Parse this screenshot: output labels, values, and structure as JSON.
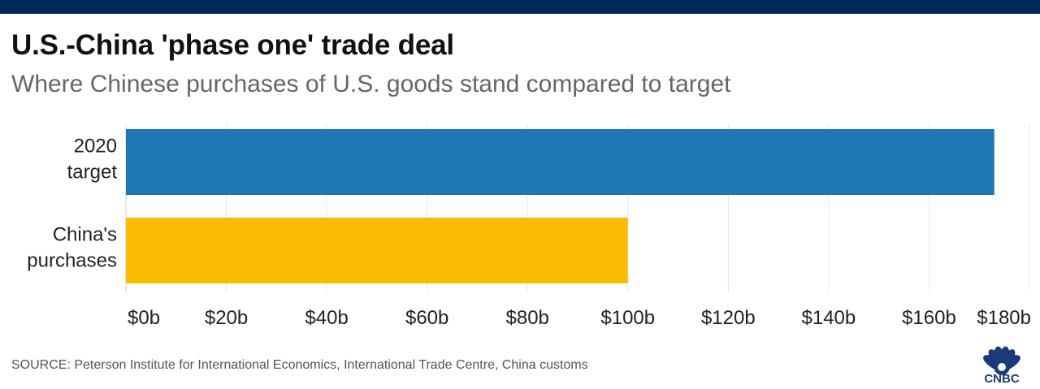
{
  "header": {
    "title": "U.S.-China 'phase one' trade deal",
    "subtitle": "Where Chinese purchases of U.S. goods stand compared to target"
  },
  "chart_data": {
    "type": "bar",
    "orientation": "horizontal",
    "categories": [
      [
        "2020",
        "target"
      ],
      [
        "China's",
        "purchases"
      ]
    ],
    "values": [
      173,
      100
    ],
    "colors": [
      "#1f77b4",
      "#fbbc05"
    ],
    "xlim": [
      0,
      180
    ],
    "x_ticks": [
      0,
      20,
      40,
      60,
      80,
      100,
      120,
      140,
      160,
      180
    ],
    "x_tick_labels": [
      "$0b",
      "$20b",
      "$40b",
      "$60b",
      "$80b",
      "$100b",
      "$120b",
      "$140b",
      "$160b",
      "$180b"
    ],
    "grid": true,
    "xlabel": "",
    "ylabel": ""
  },
  "footer": {
    "source": "SOURCE: Peterson Institute for International Economics, International Trade Centre, China customs",
    "logo_text": "CNBC"
  }
}
